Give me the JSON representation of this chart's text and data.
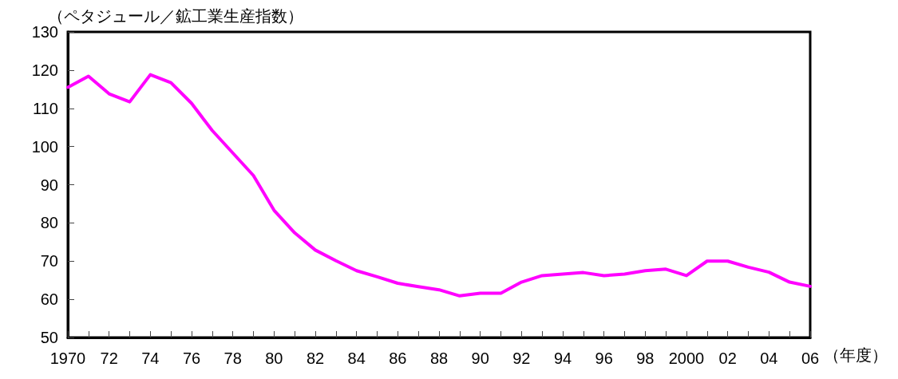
{
  "chart_data": {
    "type": "line",
    "xlabel": "（年度）",
    "ylabel": "（ペタジュール／鉱工業生産指数）",
    "categories": [
      "1970",
      null,
      "72",
      null,
      "74",
      null,
      "76",
      null,
      "78",
      null,
      "80",
      null,
      "82",
      null,
      "84",
      null,
      "86",
      null,
      "88",
      null,
      "90",
      null,
      "92",
      null,
      "94",
      null,
      "96",
      null,
      "98",
      null,
      "2000",
      null,
      "02",
      null,
      "04",
      null,
      "06"
    ],
    "series": [
      {
        "color": "#ff00ff",
        "values": [
          115.5,
          118.4,
          113.8,
          111.7,
          118.8,
          116.7,
          111.3,
          104.2,
          98.3,
          92.4,
          83.3,
          77.4,
          72.9,
          70.1,
          67.5,
          65.9,
          64.2,
          63.3,
          62.5,
          60.9,
          61.6,
          61.6,
          64.5,
          66.2,
          66.6,
          67,
          66.2,
          66.6,
          67.5,
          67.9,
          66.2,
          70,
          70,
          68.4,
          67.1,
          64.5,
          63.4
        ]
      }
    ],
    "ylim": [
      50,
      130
    ],
    "yticks": [
      50,
      60,
      70,
      80,
      90,
      100,
      110,
      120,
      130
    ],
    "grid": false,
    "marker": "none",
    "line_style": "solid"
  }
}
